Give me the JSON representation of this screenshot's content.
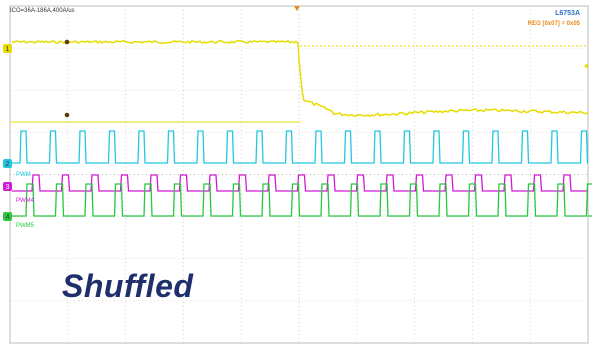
{
  "header": {
    "left_text": "ICO=36A-186A,400A/us",
    "right_title": "L6753A",
    "right_sub": "REG [0x07] = 0x05"
  },
  "annotation": "Shuffled",
  "channels": [
    {
      "id": "1",
      "color": "#e6dc00"
    },
    {
      "id": "2",
      "color": "#21c8e0",
      "label": "PWM"
    },
    {
      "id": "3",
      "color": "#d01bd3",
      "label": "PWM4"
    },
    {
      "id": "4",
      "color": "#28c840",
      "label": "PWM5"
    }
  ],
  "colors": {
    "grid": "#b9b9b9",
    "cursor": "#e58a1a"
  }
}
